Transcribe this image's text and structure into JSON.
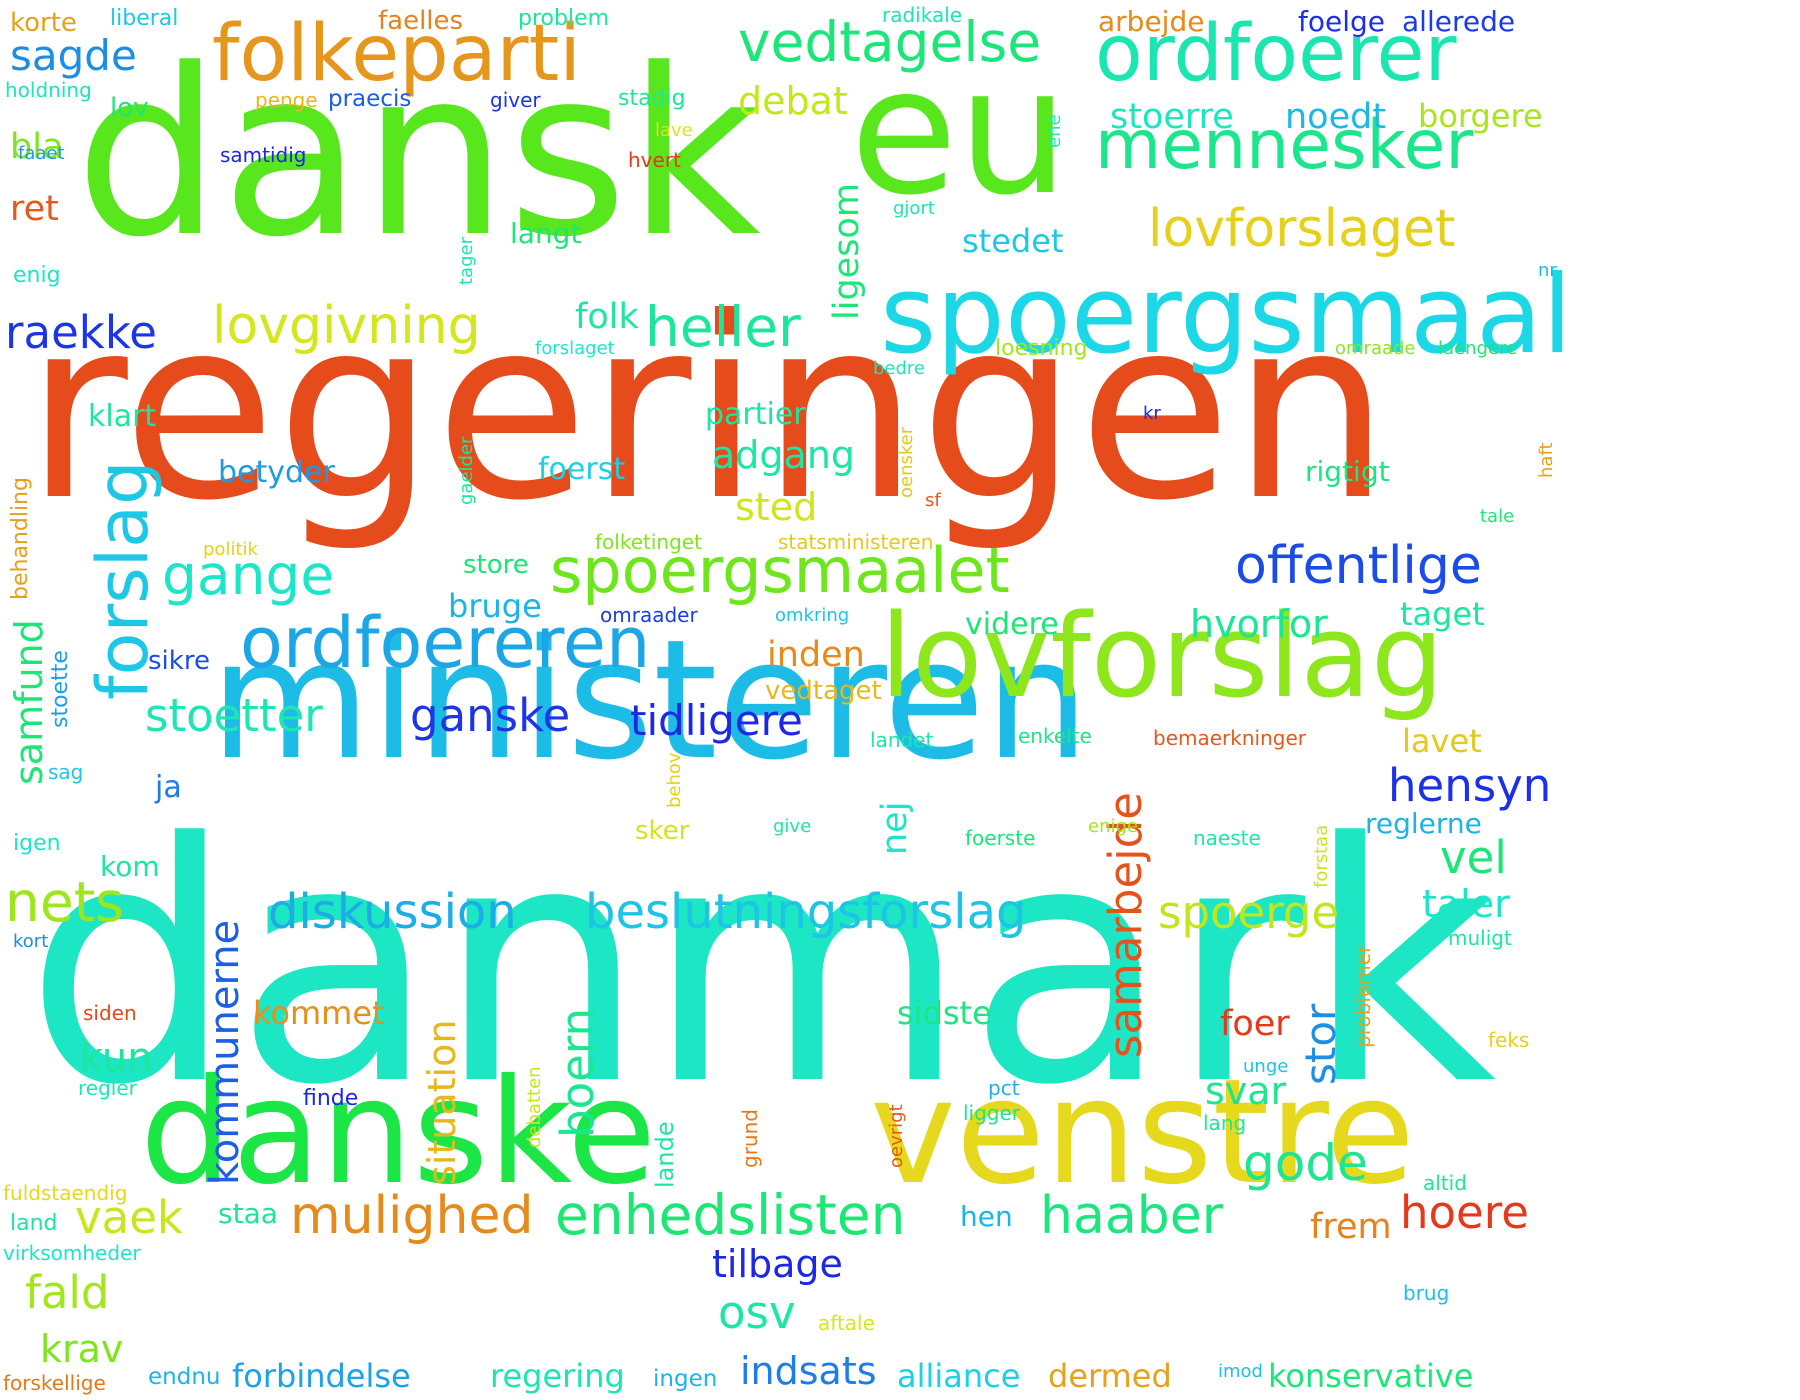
{
  "words": [
    {
      "text": "danmark",
      "color": "#1de6c4",
      "orient": "h"
    },
    {
      "text": "regeringen",
      "color": "#e64b1c",
      "orient": "h"
    },
    {
      "text": "dansk",
      "color": "#58e61c",
      "orient": "h"
    },
    {
      "text": "ministeren",
      "color": "#1cbce6",
      "orient": "h"
    },
    {
      "text": "eu",
      "color": "#58e61c",
      "orient": "h"
    },
    {
      "text": "venstre",
      "color": "#e6d81c",
      "orient": "h"
    },
    {
      "text": "danske",
      "color": "#1ce646",
      "orient": "h"
    },
    {
      "text": "lovforslag",
      "color": "#8ee61c",
      "orient": "h"
    },
    {
      "text": "spoergsmaal",
      "color": "#1cd8e6",
      "orient": "h"
    },
    {
      "text": "folkeparti",
      "color": "#e6961c",
      "orient": "h"
    },
    {
      "text": "ordfoerer",
      "color": "#1ce6b0",
      "orient": "h"
    },
    {
      "text": "ordfoereren",
      "color": "#1ca6e6",
      "orient": "h"
    },
    {
      "text": "mennesker",
      "color": "#1ce68c",
      "orient": "h"
    },
    {
      "text": "forslag",
      "color": "#1cc8e6",
      "orient": "v"
    },
    {
      "text": "spoergsmaalet",
      "color": "#6ee61c",
      "orient": "h"
    },
    {
      "text": "vedtagelse",
      "color": "#1ce67a",
      "orient": "h"
    },
    {
      "text": "enhedslisten",
      "color": "#1ce674",
      "orient": "h"
    },
    {
      "text": "lovforslaget",
      "color": "#e6d01c",
      "orient": "h"
    },
    {
      "text": "lovgivning",
      "color": "#d4e61c",
      "orient": "h"
    },
    {
      "text": "offentlige",
      "color": "#1c4ce6",
      "orient": "h"
    },
    {
      "text": "beslutningsforslag",
      "color": "#1cc4e6",
      "orient": "h"
    },
    {
      "text": "diskussion",
      "color": "#1cace6",
      "orient": "h"
    },
    {
      "text": "heller",
      "color": "#1ce69c",
      "orient": "h"
    },
    {
      "text": "gange",
      "color": "#1ce6c8",
      "orient": "h"
    },
    {
      "text": "mulighed",
      "color": "#e68a1c",
      "orient": "h"
    },
    {
      "text": "haaber",
      "color": "#1ce680",
      "orient": "h"
    },
    {
      "text": "nets",
      "color": "#9ee61c",
      "orient": "h"
    },
    {
      "text": "samarbejde",
      "color": "#e6521c",
      "orient": "v"
    },
    {
      "text": "stoetter",
      "color": "#1ce6b4",
      "orient": "h"
    },
    {
      "text": "ganske",
      "color": "#1c36e6",
      "orient": "h"
    },
    {
      "text": "tidligere",
      "color": "#1c28e6",
      "orient": "h"
    },
    {
      "text": "hensyn",
      "color": "#1c30e6",
      "orient": "h"
    },
    {
      "text": "hoere",
      "color": "#e6381c",
      "orient": "h"
    },
    {
      "text": "spoerge",
      "color": "#c0e61c",
      "orient": "h"
    },
    {
      "text": "gode",
      "color": "#1ce690",
      "orient": "h"
    },
    {
      "text": "raekke",
      "color": "#1c36e6",
      "orient": "h"
    },
    {
      "text": "sagde",
      "color": "#1c8ee6",
      "orient": "h"
    },
    {
      "text": "vaek",
      "color": "#c8e61c",
      "orient": "h"
    },
    {
      "text": "osv",
      "color": "#1ce6a4",
      "orient": "h"
    },
    {
      "text": "indsats",
      "color": "#1c7ee6",
      "orient": "h"
    },
    {
      "text": "boern",
      "color": "#1ce690",
      "orient": "v"
    },
    {
      "text": "situation",
      "color": "#e6b81c",
      "orient": "v"
    },
    {
      "text": "kommunerne",
      "color": "#1c5ee6",
      "orient": "v"
    },
    {
      "text": "vel",
      "color": "#1ce678",
      "orient": "h"
    },
    {
      "text": "stor",
      "color": "#1c8ee6",
      "orient": "v"
    },
    {
      "text": "samfund",
      "color": "#1ce678",
      "orient": "v"
    },
    {
      "text": "fald",
      "color": "#a4e61c",
      "orient": "h"
    },
    {
      "text": "folk",
      "color": "#1ce6a0",
      "orient": "h"
    },
    {
      "text": "ligesom",
      "color": "#1ce678",
      "orient": "v"
    },
    {
      "text": "debat",
      "color": "#c4e61c",
      "orient": "h"
    },
    {
      "text": "stoerre",
      "color": "#1ce6c0",
      "orient": "h"
    },
    {
      "text": "noedt",
      "color": "#1cb8e6",
      "orient": "h"
    },
    {
      "text": "borgere",
      "color": "#a8e61c",
      "orient": "h"
    },
    {
      "text": "adgang",
      "color": "#1ce6a4",
      "orient": "h"
    },
    {
      "text": "sted",
      "color": "#d0e61c",
      "orient": "h"
    },
    {
      "text": "hvorfor",
      "color": "#1ce690",
      "orient": "h"
    },
    {
      "text": "inden",
      "color": "#e68a1c",
      "orient": "h"
    },
    {
      "text": "kun",
      "color": "#1ce6a0",
      "orient": "h"
    },
    {
      "text": "svar",
      "color": "#1ce690",
      "orient": "h"
    },
    {
      "text": "tilbage",
      "color": "#1c28e6",
      "orient": "h"
    },
    {
      "text": "frem",
      "color": "#e6821c",
      "orient": "h"
    },
    {
      "text": "krav",
      "color": "#7ee61c",
      "orient": "h"
    },
    {
      "text": "nej",
      "color": "#1ce6c8",
      "orient": "v"
    },
    {
      "text": "taler",
      "color": "#1ce6c8",
      "orient": "h"
    },
    {
      "text": "bla",
      "color": "#7ee61c",
      "orient": "h"
    },
    {
      "text": "ret",
      "color": "#e6581c",
      "orient": "h"
    },
    {
      "text": "stedet",
      "color": "#1cc8e6",
      "orient": "h"
    },
    {
      "text": "sidste",
      "color": "#1ce67c",
      "orient": "h"
    },
    {
      "text": "kommet",
      "color": "#e6901c",
      "orient": "h"
    },
    {
      "text": "foer",
      "color": "#e6381c",
      "orient": "h"
    },
    {
      "text": "forbindelse",
      "color": "#1ca2e6",
      "orient": "h"
    },
    {
      "text": "regering",
      "color": "#1ce6b0",
      "orient": "h"
    },
    {
      "text": "alliance",
      "color": "#1cd0e6",
      "orient": "h"
    },
    {
      "text": "dermed",
      "color": "#e6a21c",
      "orient": "h"
    },
    {
      "text": "konservative",
      "color": "#1ce678",
      "orient": "h"
    },
    {
      "text": "bruge",
      "color": "#1cb4e6",
      "orient": "h"
    },
    {
      "text": "videre",
      "color": "#1ce678",
      "orient": "h"
    },
    {
      "text": "taget",
      "color": "#1ce6a0",
      "orient": "h"
    },
    {
      "text": "lavet",
      "color": "#e6c81c",
      "orient": "h"
    },
    {
      "text": "partier",
      "color": "#1ce6a4",
      "orient": "h"
    },
    {
      "text": "foerst",
      "color": "#1cd0e6",
      "orient": "h"
    },
    {
      "text": "betyder",
      "color": "#1c9ae6",
      "orient": "h"
    },
    {
      "text": "klart",
      "color": "#1ce6a0",
      "orient": "h"
    },
    {
      "text": "langt",
      "color": "#1ce67a",
      "orient": "h"
    },
    {
      "text": "rigtigt",
      "color": "#1ce684",
      "orient": "h"
    },
    {
      "text": "reglerne",
      "color": "#1cb4e6",
      "orient": "h"
    },
    {
      "text": "staa",
      "color": "#1ce690",
      "orient": "h"
    },
    {
      "text": "hen",
      "color": "#1cb4e6",
      "orient": "h"
    },
    {
      "text": "vedtaget",
      "color": "#e6b81c",
      "orient": "h"
    },
    {
      "text": "ja",
      "color": "#1c7ee6",
      "orient": "h"
    },
    {
      "text": "kom",
      "color": "#1ce6a4",
      "orient": "h"
    },
    {
      "text": "sikre",
      "color": "#1c4ce6",
      "orient": "h"
    },
    {
      "text": "store",
      "color": "#1ce674",
      "orient": "h"
    },
    {
      "text": "lov",
      "color": "#1ce676",
      "orient": "h"
    },
    {
      "text": "foelge",
      "color": "#1c2ee6",
      "orient": "h"
    },
    {
      "text": "allerede",
      "color": "#1c3ce6",
      "orient": "h"
    },
    {
      "text": "arbejde",
      "color": "#e68a1c",
      "orient": "h"
    },
    {
      "text": "faelles",
      "color": "#e6821c",
      "orient": "h"
    },
    {
      "text": "korte",
      "color": "#e6a01c",
      "orient": "h"
    },
    {
      "text": "liberal",
      "color": "#1cc8e6",
      "orient": "h"
    },
    {
      "text": "problem",
      "color": "#1ce69c",
      "orient": "h"
    },
    {
      "text": "radikale",
      "color": "#1ce6b0",
      "orient": "h"
    },
    {
      "text": "holdning",
      "color": "#1ce6b4",
      "orient": "h"
    },
    {
      "text": "penge",
      "color": "#e6b81c",
      "orient": "h"
    },
    {
      "text": "praecis",
      "color": "#1c5ce6",
      "orient": "h"
    },
    {
      "text": "giver",
      "color": "#1c36e6",
      "orient": "h"
    },
    {
      "text": "stadig",
      "color": "#1ce698",
      "orient": "h"
    },
    {
      "text": "faaet",
      "color": "#1c9ae6",
      "orient": "h"
    },
    {
      "text": "samtidig",
      "color": "#1c28e6",
      "orient": "h"
    },
    {
      "text": "hvert",
      "color": "#e6381c",
      "orient": "h"
    },
    {
      "text": "lave",
      "color": "#d8e61c",
      "orient": "h"
    },
    {
      "text": "gjort",
      "color": "#1ce6a8",
      "orient": "h"
    },
    {
      "text": "enig",
      "color": "#1ce6c4",
      "orient": "h"
    },
    {
      "text": "forslaget",
      "color": "#1ce6d0",
      "orient": "h"
    },
    {
      "text": "loesning",
      "color": "#a0e61c",
      "orient": "h"
    },
    {
      "text": "omraade",
      "color": "#8ee61c",
      "orient": "h"
    },
    {
      "text": "laengere",
      "color": "#1ce678",
      "orient": "h"
    },
    {
      "text": "bedre",
      "color": "#1ce6b4",
      "orient": "h"
    },
    {
      "text": "kr",
      "color": "#1c28e6",
      "orient": "h"
    },
    {
      "text": "sf",
      "color": "#e6581c",
      "orient": "h"
    },
    {
      "text": "politik",
      "color": "#e6d01c",
      "orient": "h"
    },
    {
      "text": "folketinget",
      "color": "#7ee61c",
      "orient": "h"
    },
    {
      "text": "statsministeren",
      "color": "#e6c81c",
      "orient": "h"
    },
    {
      "text": "tale",
      "color": "#1ce678",
      "orient": "h"
    },
    {
      "text": "omraader",
      "color": "#1c3ce6",
      "orient": "h"
    },
    {
      "text": "omkring",
      "color": "#1cc4e6",
      "orient": "h"
    },
    {
      "text": "landet",
      "color": "#1ce6a8",
      "orient": "h"
    },
    {
      "text": "enkelte",
      "color": "#1ce688",
      "orient": "h"
    },
    {
      "text": "bemaerkninger",
      "color": "#e6581c",
      "orient": "h"
    },
    {
      "text": "sker",
      "color": "#d0e61c",
      "orient": "h"
    },
    {
      "text": "give",
      "color": "#1ce6a0",
      "orient": "h"
    },
    {
      "text": "foerste",
      "color": "#1ce678",
      "orient": "h"
    },
    {
      "text": "enige",
      "color": "#a0e61c",
      "orient": "h"
    },
    {
      "text": "naeste",
      "color": "#1ce6a8",
      "orient": "h"
    },
    {
      "text": "sag",
      "color": "#1cc8e6",
      "orient": "h"
    },
    {
      "text": "igen",
      "color": "#1ce6c4",
      "orient": "h"
    },
    {
      "text": "kort",
      "color": "#1c8ee6",
      "orient": "h"
    },
    {
      "text": "siden",
      "color": "#e6481c",
      "orient": "h"
    },
    {
      "text": "regler",
      "color": "#1ce6b8",
      "orient": "h"
    },
    {
      "text": "finde",
      "color": "#1c28e6",
      "orient": "h"
    },
    {
      "text": "pct",
      "color": "#1cb0e6",
      "orient": "h"
    },
    {
      "text": "ligger",
      "color": "#1ce690",
      "orient": "h"
    },
    {
      "text": "lang",
      "color": "#1ce698",
      "orient": "h"
    },
    {
      "text": "unge",
      "color": "#1cc4e6",
      "orient": "h"
    },
    {
      "text": "feks",
      "color": "#e6d01c",
      "orient": "h"
    },
    {
      "text": "muligt",
      "color": "#1ce6a8",
      "orient": "h"
    },
    {
      "text": "altid",
      "color": "#1ce690",
      "orient": "h"
    },
    {
      "text": "brug",
      "color": "#1cc0e6",
      "orient": "h"
    },
    {
      "text": "imod",
      "color": "#1cc0e6",
      "orient": "h"
    },
    {
      "text": "aftale",
      "color": "#d8e61c",
      "orient": "h"
    },
    {
      "text": "ingen",
      "color": "#1cb4e6",
      "orient": "h"
    },
    {
      "text": "endnu",
      "color": "#1cb4e6",
      "orient": "h"
    },
    {
      "text": "forskellige",
      "color": "#e6781c",
      "orient": "h"
    },
    {
      "text": "virksomheder",
      "color": "#1ce6c8",
      "orient": "h"
    },
    {
      "text": "land",
      "color": "#1ce6a0",
      "orient": "h"
    },
    {
      "text": "fuldstaendig",
      "color": "#e6d81c",
      "orient": "h"
    },
    {
      "text": "tager",
      "color": "#1ce6b4",
      "orient": "v"
    },
    {
      "text": "ene",
      "color": "#1ce6c4",
      "orient": "v"
    },
    {
      "text": "nr",
      "color": "#1cb8e6",
      "orient": "h"
    },
    {
      "text": "haft",
      "color": "#e6a01c",
      "orient": "v"
    },
    {
      "text": "oensker",
      "color": "#e6c81c",
      "orient": "v"
    },
    {
      "text": "gaelder",
      "color": "#1ce698",
      "orient": "v"
    },
    {
      "text": "behandling",
      "color": "#e6a01c",
      "orient": "v"
    },
    {
      "text": "stoette",
      "color": "#1ca0e6",
      "orient": "v"
    },
    {
      "text": "behov",
      "color": "#e6d01c",
      "orient": "v"
    },
    {
      "text": "forstaa",
      "color": "#c8e61c",
      "orient": "v"
    },
    {
      "text": "problemer",
      "color": "#e6a01c",
      "orient": "v"
    },
    {
      "text": "debatten",
      "color": "#c8e61c",
      "orient": "v"
    },
    {
      "text": "lande",
      "color": "#1ce6a4",
      "orient": "v"
    },
    {
      "text": "grund",
      "color": "#e6781c",
      "orient": "v"
    },
    {
      "text": "oevrigt",
      "color": "#e6581c",
      "orient": "v"
    }
  ]
}
